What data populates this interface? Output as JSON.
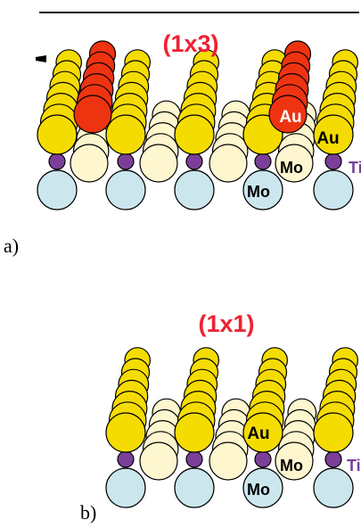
{
  "colors": {
    "au_top": "#f5dc00",
    "au_adatom": "#ee3311",
    "mo_bulk": "#fdf6cf",
    "mo_sub": "#cce6ee",
    "ti": "#7b3f99",
    "title_red": "#ee2233",
    "outline": "#000000"
  },
  "panel_a": {
    "label": "a)",
    "title": "(1x3)",
    "atom_labels": {
      "au_red": "Au",
      "au_yellow": "Au",
      "mo_upper": "Mo",
      "mo_lower": "Mo",
      "ti": "Ti"
    }
  },
  "panel_b": {
    "label": "b)",
    "title": "(1x1)",
    "atom_labels": {
      "au_yellow": "Au",
      "mo_upper": "Mo",
      "mo_lower": "Mo",
      "ti": "Ti"
    }
  }
}
